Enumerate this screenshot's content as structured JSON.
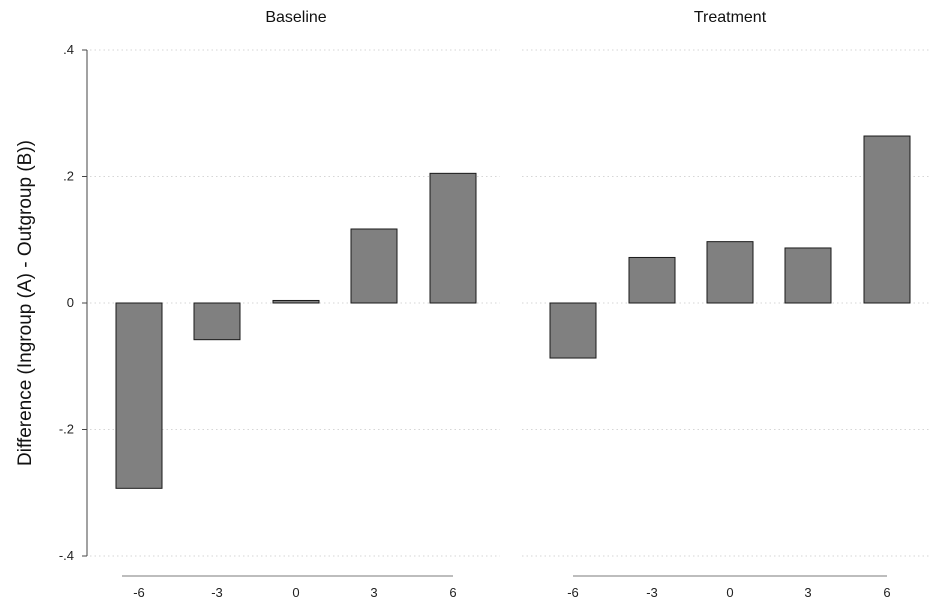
{
  "chart_data": {
    "type": "bar",
    "ylabel": "Difference (Ingroup (A) - Outgroup (B))",
    "ylim": [
      -0.4,
      0.4
    ],
    "yticks": [
      ".4",
      ".2",
      "0",
      "-.2",
      "-.4"
    ],
    "ytick_values": [
      0.4,
      0.2,
      0,
      -0.2,
      -0.4
    ],
    "grid": true,
    "bar_color": "#808080",
    "bar_edge_color": "#1a1a1a",
    "panels": [
      {
        "title": "Baseline",
        "categories": [
          "-6",
          "-3",
          "0",
          "3",
          "6"
        ],
        "values": [
          -0.293,
          -0.058,
          0.004,
          0.117,
          0.205
        ]
      },
      {
        "title": "Treatment",
        "categories": [
          "-6",
          "-3",
          "0",
          "3",
          "6"
        ],
        "values": [
          -0.087,
          0.072,
          0.097,
          0.087,
          0.264
        ]
      }
    ]
  }
}
